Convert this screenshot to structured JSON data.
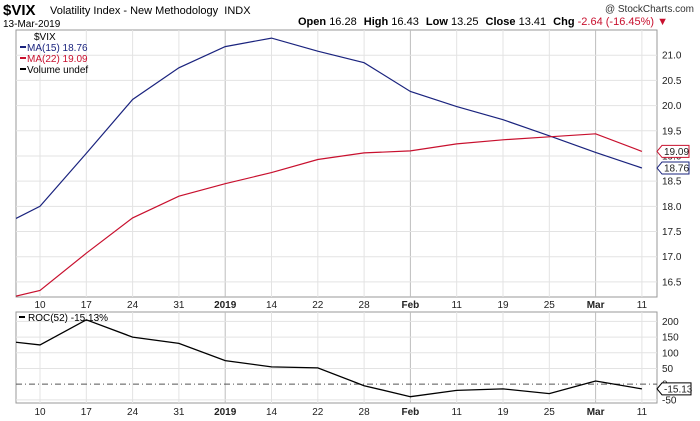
{
  "header": {
    "symbol": "$VIX",
    "name": "Volatility Index - New Methodology",
    "exchange": "INDX",
    "date": "13-Mar-2019",
    "copyright": "@ StockCharts.com",
    "open_label": "Open",
    "open": "16.28",
    "high_label": "High",
    "high": "16.43",
    "low_label": "Low",
    "low": "13.25",
    "close_label": "Close",
    "close": "13.41",
    "chg_label": "Chg",
    "chg": "-2.64 (-16.45%)",
    "chg_arrow": "▼"
  },
  "colors": {
    "ma15": "#1a237e",
    "ma22": "#c8102e",
    "roc": "#000000"
  },
  "chart_data": [
    {
      "type": "line",
      "panel": "main",
      "x": [
        "10",
        "17",
        "24",
        "31",
        "2019",
        "14",
        "22",
        "28",
        "Feb",
        "11",
        "19",
        "25",
        "Mar",
        "11"
      ],
      "bold_ticks": [
        "2019",
        "Feb",
        "Mar"
      ],
      "ylim": [
        16.2,
        21.5
      ],
      "yticks": [
        "16.5",
        "17.0",
        "17.5",
        "18.0",
        "18.5",
        "19.0",
        "19.5",
        "20.0",
        "20.5",
        "21.0"
      ],
      "legend": [
        "$VIX",
        "MA(15) 18.76",
        "MA(22) 19.09",
        "Volume undef"
      ],
      "series": [
        {
          "name": "MA(15)",
          "last_label": "18.76",
          "points": [
            [
              -0.6,
              17.72
            ],
            [
              0,
              18.0
            ],
            [
              1,
              19.05
            ],
            [
              2,
              20.12
            ],
            [
              3,
              20.75
            ],
            [
              4,
              21.17
            ],
            [
              5,
              21.34
            ],
            [
              6,
              21.08
            ],
            [
              7,
              20.85
            ],
            [
              8,
              20.28
            ],
            [
              9,
              19.98
            ],
            [
              10,
              19.72
            ],
            [
              11,
              19.4
            ],
            [
              12,
              19.07
            ],
            [
              13,
              18.76
            ]
          ]
        },
        {
          "name": "MA(22)",
          "last_label": "19.09",
          "points": [
            [
              -0.6,
              16.2
            ],
            [
              0,
              16.33
            ],
            [
              1,
              17.07
            ],
            [
              2,
              17.77
            ],
            [
              3,
              18.2
            ],
            [
              4,
              18.45
            ],
            [
              5,
              18.67
            ],
            [
              6,
              18.93
            ],
            [
              7,
              19.06
            ],
            [
              8,
              19.1
            ],
            [
              9,
              19.24
            ],
            [
              10,
              19.32
            ],
            [
              11,
              19.38
            ],
            [
              12,
              19.44
            ],
            [
              13,
              19.09
            ]
          ]
        }
      ]
    },
    {
      "type": "line",
      "panel": "roc",
      "x": [
        "10",
        "17",
        "24",
        "31",
        "2019",
        "14",
        "22",
        "28",
        "Feb",
        "11",
        "19",
        "25",
        "Mar",
        "11"
      ],
      "ylim": [
        -60,
        230
      ],
      "yticks": [
        "200",
        "150",
        "100",
        "50",
        "0",
        "-50"
      ],
      "legend": "ROC(52) -15.13%",
      "last_label": "-15.13",
      "series": [
        {
          "name": "ROC(52)",
          "points": [
            [
              -0.6,
              135
            ],
            [
              0,
              125
            ],
            [
              1,
              205
            ],
            [
              2,
              150
            ],
            [
              3,
              130
            ],
            [
              4,
              75
            ],
            [
              5,
              55
            ],
            [
              6,
              52
            ],
            [
              7,
              -5
            ],
            [
              8,
              -40
            ],
            [
              9,
              -20
            ],
            [
              10,
              -15
            ],
            [
              11,
              -30
            ],
            [
              12,
              10
            ],
            [
              13,
              -15
            ]
          ]
        }
      ]
    }
  ]
}
